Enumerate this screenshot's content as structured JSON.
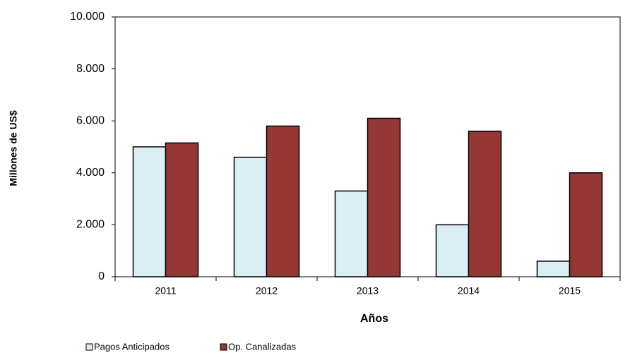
{
  "chart_data": {
    "type": "bar",
    "y_label": "Millones de US$",
    "x_label": "Años",
    "categories": [
      "2011",
      "2012",
      "2013",
      "2014",
      "2015"
    ],
    "series": [
      {
        "name": "Pagos Anticipados",
        "color": "#dbeef4",
        "values": [
          5000,
          4600,
          3300,
          2000,
          600
        ]
      },
      {
        "name": "Op. Canalizadas",
        "color": "#953735",
        "values": [
          5150,
          5800,
          6100,
          5600,
          4000
        ]
      }
    ],
    "ylim": [
      0,
      10000
    ],
    "yticks": [
      0,
      {
        "value": 2000,
        "label": "2.000"
      },
      {
        "value": 4000,
        "label": "4.000"
      },
      {
        "value": 6000,
        "label": "6.000"
      },
      {
        "value": 8000,
        "label": "8.000"
      },
      {
        "value": 10000,
        "label": "10.000"
      }
    ],
    "grid": false,
    "legend": "bottom"
  }
}
